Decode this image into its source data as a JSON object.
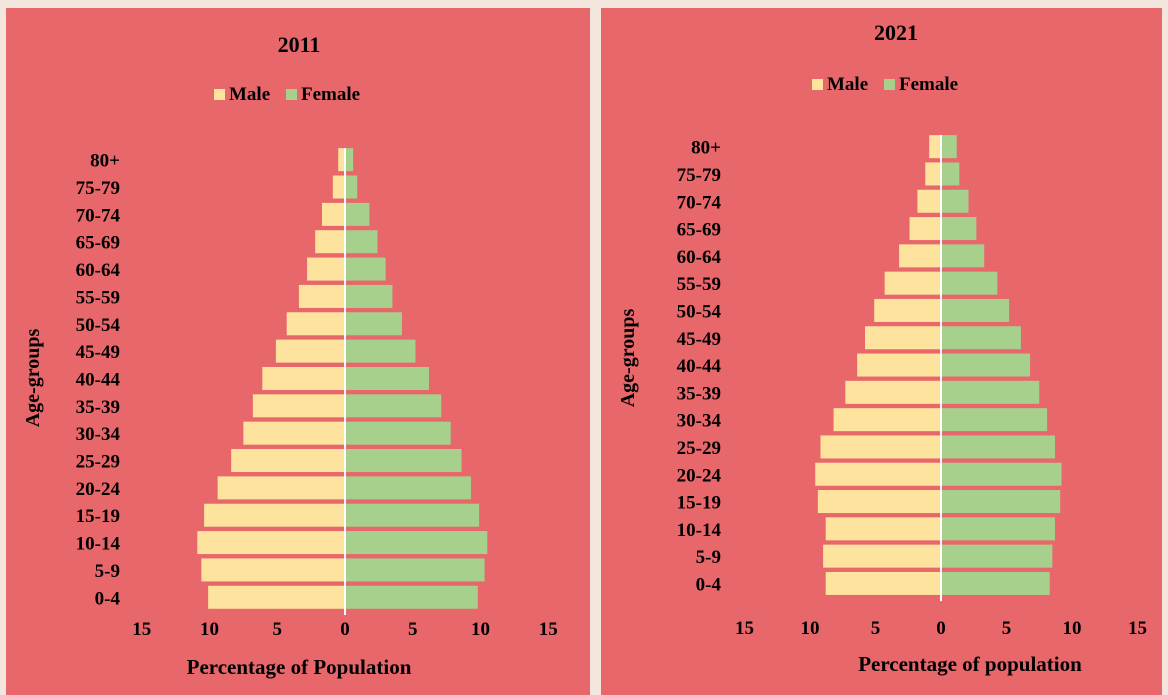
{
  "colors": {
    "background": "#e8676a",
    "male": "#fde39e",
    "female": "#a8d08d",
    "axis": "#ffffff"
  },
  "chart_data": [
    {
      "type": "bar",
      "orientation": "horizontal-population-pyramid",
      "title": "2011",
      "xlabel": "Percentage of Population",
      "ylabel": "Age-groups",
      "xlim": [
        -15,
        15
      ],
      "xticks": [
        "15",
        "10",
        "5",
        "0",
        "5",
        "10",
        "15"
      ],
      "legend": "top-center",
      "categories": [
        "0-4",
        "5-9",
        "10-14",
        "15-19",
        "20-24",
        "25-29",
        "30-34",
        "35-39",
        "40-44",
        "45-49",
        "50-54",
        "55-59",
        "60-64",
        "65-69",
        "70-74",
        "75-79",
        "80+"
      ],
      "series": [
        {
          "name": "Male",
          "values": [
            10.1,
            10.6,
            10.9,
            10.4,
            9.4,
            8.4,
            7.5,
            6.8,
            6.1,
            5.1,
            4.3,
            3.4,
            2.8,
            2.2,
            1.7,
            0.9,
            0.5
          ]
        },
        {
          "name": "Female",
          "values": [
            9.8,
            10.3,
            10.5,
            9.9,
            9.3,
            8.6,
            7.8,
            7.1,
            6.2,
            5.2,
            4.2,
            3.5,
            3.0,
            2.4,
            1.8,
            0.9,
            0.6
          ]
        }
      ]
    },
    {
      "type": "bar",
      "orientation": "horizontal-population-pyramid",
      "title": "2021",
      "xlabel": "Percentage of population",
      "ylabel": "Age-groups",
      "xlim": [
        -15,
        15
      ],
      "xticks": [
        "15",
        "10",
        "5",
        "0",
        "5",
        "10",
        "15"
      ],
      "legend": "top-center",
      "categories": [
        "0-4",
        "5-9",
        "10-14",
        "15-19",
        "20-24",
        "25-29",
        "30-34",
        "35-39",
        "40-44",
        "45-49",
        "50-54",
        "55-59",
        "60-64",
        "65-69",
        "70-74",
        "75-79",
        "80+"
      ],
      "series": [
        {
          "name": "Male",
          "values": [
            8.8,
            9.0,
            8.8,
            9.4,
            9.6,
            9.2,
            8.2,
            7.3,
            6.4,
            5.8,
            5.1,
            4.3,
            3.2,
            2.4,
            1.8,
            1.2,
            0.9
          ]
        },
        {
          "name": "Female",
          "values": [
            8.3,
            8.5,
            8.7,
            9.1,
            9.2,
            8.7,
            8.1,
            7.5,
            6.8,
            6.1,
            5.2,
            4.3,
            3.3,
            2.7,
            2.1,
            1.4,
            1.2
          ]
        }
      ]
    }
  ]
}
